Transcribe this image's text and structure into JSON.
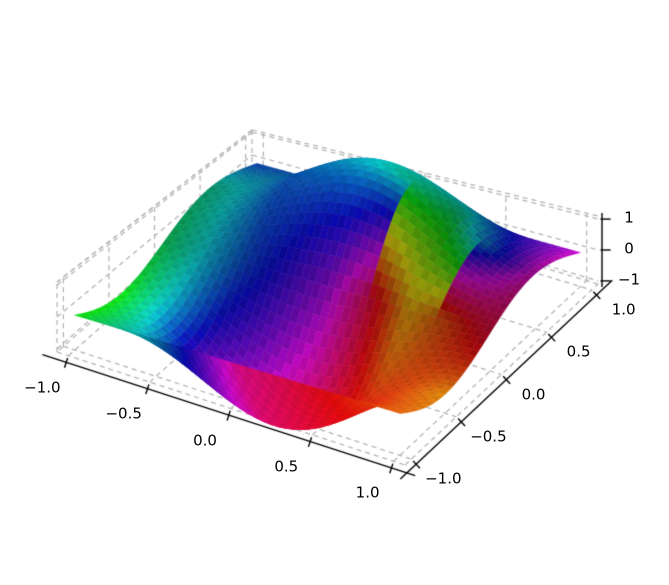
{
  "figure": {
    "background_color": "#ffffff",
    "grid_color": "#b3b3b3",
    "axis_color": "#000000",
    "label_color": "#000000"
  },
  "chart_data": {
    "type": "surface3d",
    "title": "",
    "xlabel": "",
    "ylabel": "",
    "zlabel": "",
    "x_range": [
      -1,
      1
    ],
    "y_range": [
      -1,
      1
    ],
    "z_axis_range": [
      -1,
      1
    ],
    "x_tick_values": [
      -1,
      -0.5,
      0,
      0.5,
      1
    ],
    "y_tick_values": [
      -1,
      -0.5,
      0,
      0.5,
      1
    ],
    "z_tick_values": [
      -1,
      0,
      1
    ],
    "x_tick_labels": [
      "−1.0",
      "−0.5",
      "0.0",
      "0.5",
      "1.0"
    ],
    "y_tick_labels": [
      "−1.0",
      "−0.5",
      "0.0",
      "0.5",
      "1.0"
    ],
    "z_tick_labels": [
      "−1",
      "0",
      "1"
    ],
    "surface": {
      "formula": "z = A * sin(pi*y) * (c0 + c1*cos(pi*x))",
      "amplitude": 2.9,
      "c0": 0.6,
      "c1": 0.4,
      "mesh_n": 48,
      "extends_beyond_zbox": true
    },
    "colormap": {
      "model": "hsv-field over (x,y), bilinear with circular hue interpolation",
      "saturation": 0.95,
      "grid_x": [
        -1,
        -0.5,
        0,
        0.5,
        1
      ],
      "grid_y": [
        -1,
        -0.5,
        0,
        0.5,
        1
      ],
      "hue_grid": [
        [
          0.33,
          0.55,
          0.9,
          0.99,
          1.07
        ],
        [
          0.33,
          0.74,
          0.94,
          1.01,
          1.1
        ],
        [
          0.4,
          0.62,
          0.78,
          1.12,
          0.96
        ],
        [
          0.45,
          0.6,
          0.5,
          0.4,
          0.86
        ],
        [
          0.62,
          0.57,
          0.52,
          0.66,
          0.83
        ]
      ],
      "value_grid": [
        [
          0.85,
          0.55,
          0.8,
          0.85,
          0.9
        ],
        [
          0.9,
          0.7,
          0.9,
          0.9,
          0.85
        ],
        [
          0.6,
          0.55,
          0.6,
          0.6,
          0.55
        ],
        [
          0.55,
          0.65,
          0.78,
          0.5,
          0.55
        ],
        [
          0.65,
          0.55,
          0.65,
          0.55,
          0.85
        ]
      ]
    },
    "grid": {
      "style": "dashed",
      "dash": [
        5,
        4
      ],
      "on_floor_and_back_walls": true
    },
    "legend": null
  }
}
